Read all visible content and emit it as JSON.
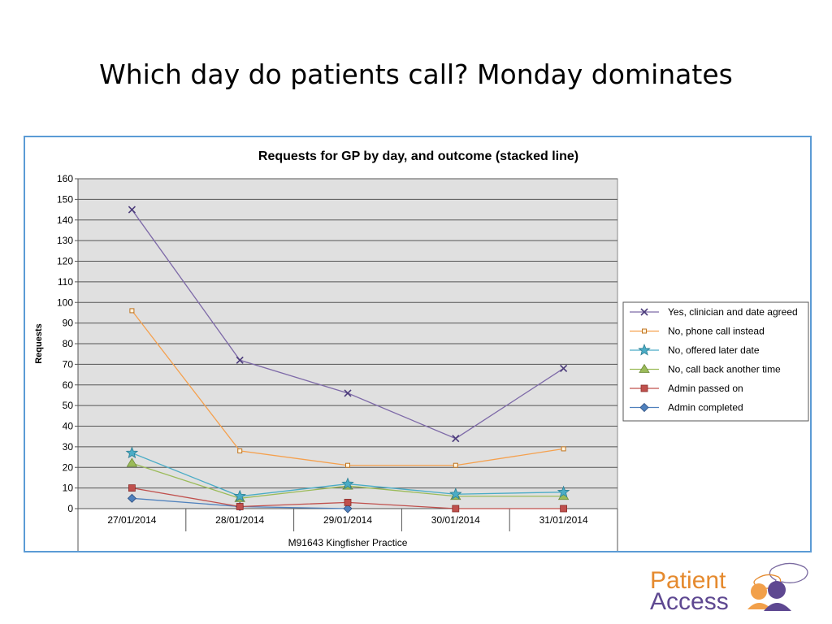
{
  "slide": {
    "title": "Which day do patients call?  Monday dominates"
  },
  "logo": {
    "line1": "Patient",
    "line2": "Access",
    "colors": {
      "orange": "#e58a2e",
      "purple": "#5e4891"
    }
  },
  "chart_data": {
    "type": "line",
    "title": "Requests for GP by day, and outcome (stacked line)",
    "xlabel": "M91643 Kingfisher Practice",
    "ylabel": "Requests",
    "ylim": [
      0,
      160
    ],
    "yticks": [
      0,
      10,
      20,
      30,
      40,
      50,
      60,
      70,
      80,
      90,
      100,
      110,
      120,
      130,
      140,
      150,
      160
    ],
    "grid": true,
    "legend_position": "right",
    "categories": [
      "27/01/2014",
      "28/01/2014",
      "29/01/2014",
      "30/01/2014",
      "31/01/2014"
    ],
    "series": [
      {
        "name": "Yes, clinician and date agreed",
        "marker": "x",
        "color": "#7e6aa8",
        "values": [
          145,
          72,
          56,
          34,
          68
        ]
      },
      {
        "name": "No, phone call instead",
        "marker": "square-small",
        "color": "#f5a04d",
        "values": [
          96,
          28,
          21,
          21,
          29
        ]
      },
      {
        "name": "No, offered later date",
        "marker": "star",
        "color": "#4bacc6",
        "values": [
          27,
          6,
          12,
          7,
          8
        ]
      },
      {
        "name": "No, call back another time",
        "marker": "triangle",
        "color": "#9bbb59",
        "values": [
          22,
          5,
          11,
          6,
          6
        ]
      },
      {
        "name": "Admin passed on",
        "marker": "square",
        "color": "#c0504d",
        "values": [
          10,
          1,
          3,
          0,
          0
        ]
      },
      {
        "name": "Admin completed",
        "marker": "diamond",
        "color": "#4f81bd",
        "values": [
          5,
          1,
          0,
          null,
          null
        ]
      }
    ]
  }
}
